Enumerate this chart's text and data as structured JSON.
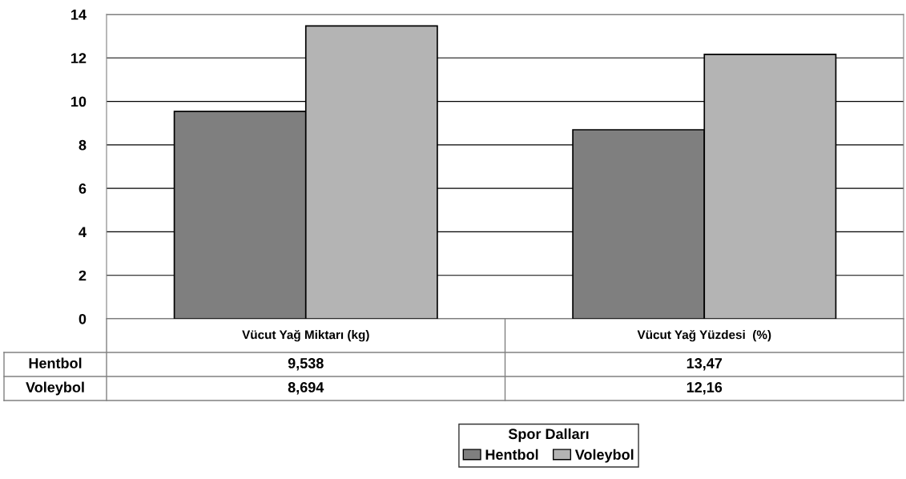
{
  "chart_data": {
    "type": "bar",
    "categories": [
      "Vücut Yağ Miktarı (kg)",
      "Vücut Yağ Yüzdesi  (%)"
    ],
    "series": [
      {
        "name": "Hentbol",
        "color": "#7f7f7f",
        "values": [
          9.538,
          8.694
        ]
      },
      {
        "name": "Voleybol",
        "color": "#b4b4b4",
        "values": [
          13.47,
          12.16
        ]
      }
    ],
    "ylim": [
      0,
      14
    ],
    "yticks": [
      0,
      2,
      4,
      6,
      8,
      10,
      12,
      14
    ],
    "grid": "y",
    "legend": "bottom",
    "legend_title": "Spor Dalları",
    "annotations": [
      "Hentbol",
      "9,538",
      "13,47",
      "Voleybol",
      "8,694",
      "12,16"
    ]
  }
}
